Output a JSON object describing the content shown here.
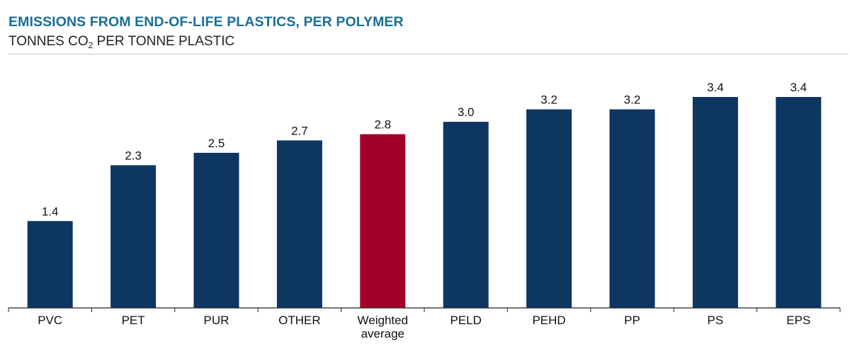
{
  "header": {
    "title": "EMISSIONS FROM END-OF-LIFE PLASTICS, PER POLYMER",
    "subtitle_pre": "TONNES CO",
    "subtitle_sub": "2",
    "subtitle_post": " PER TONNE PLASTIC"
  },
  "chart_data": {
    "type": "bar",
    "title": "EMISSIONS FROM END-OF-LIFE PLASTICS, PER POLYMER",
    "subtitle": "TONNES CO2 PER TONNE PLASTIC",
    "categories": [
      "PVC",
      "PET",
      "PUR",
      "OTHER",
      "Weighted average",
      "PELD",
      "PEHD",
      "PP",
      "PS",
      "EPS"
    ],
    "category_lines": [
      [
        "PVC"
      ],
      [
        "PET"
      ],
      [
        "PUR"
      ],
      [
        "OTHER"
      ],
      [
        "Weighted",
        "average"
      ],
      [
        "PELD"
      ],
      [
        "PEHD"
      ],
      [
        "PP"
      ],
      [
        "PS"
      ],
      [
        "EPS"
      ]
    ],
    "values": [
      1.4,
      2.3,
      2.5,
      2.7,
      2.8,
      3.0,
      3.2,
      3.2,
      3.4,
      3.4
    ],
    "value_labels": [
      "1.4",
      "2.3",
      "2.5",
      "2.7",
      "2.8",
      "3.0",
      "3.2",
      "3.2",
      "3.4",
      "3.4"
    ],
    "highlight_index": 4,
    "colors": {
      "bar": "#0d3660",
      "highlight": "#a30029"
    },
    "ylim": [
      0,
      3.4
    ],
    "grid": false,
    "legend": "none"
  }
}
